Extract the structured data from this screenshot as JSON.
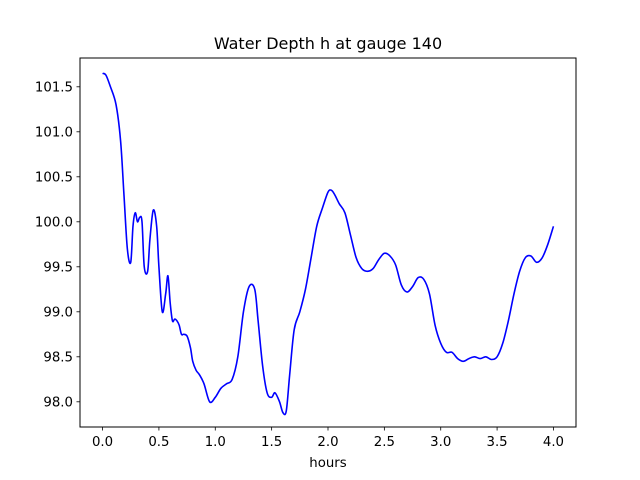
{
  "chart_data": {
    "type": "line",
    "title": "Water Depth h at gauge 140",
    "xlabel": "hours",
    "ylabel": "",
    "xlim": [
      -0.2,
      4.2
    ],
    "ylim": [
      97.72,
      101.82
    ],
    "xticks": [
      0.0,
      0.5,
      1.0,
      1.5,
      2.0,
      2.5,
      3.0,
      3.5,
      4.0
    ],
    "xtick_labels": [
      "0.0",
      "0.5",
      "1.0",
      "1.5",
      "2.0",
      "2.5",
      "3.0",
      "3.5",
      "4.0"
    ],
    "yticks": [
      98.0,
      98.5,
      99.0,
      99.5,
      100.0,
      100.5,
      101.0,
      101.5
    ],
    "ytick_labels": [
      "98.0",
      "98.5",
      "99.0",
      "99.5",
      "100.0",
      "100.5",
      "101.0",
      "101.5"
    ],
    "grid": false,
    "legend": "none",
    "series": [
      {
        "color": "#0000ff",
        "x": [
          0.0,
          0.03,
          0.07,
          0.12,
          0.16,
          0.19,
          0.22,
          0.25,
          0.27,
          0.29,
          0.31,
          0.33,
          0.35,
          0.37,
          0.4,
          0.42,
          0.45,
          0.48,
          0.5,
          0.53,
          0.56,
          0.58,
          0.6,
          0.62,
          0.64,
          0.66,
          0.68,
          0.7,
          0.72,
          0.75,
          0.78,
          0.8,
          0.83,
          0.86,
          0.9,
          0.95,
          1.0,
          1.05,
          1.1,
          1.15,
          1.2,
          1.25,
          1.3,
          1.35,
          1.38,
          1.42,
          1.46,
          1.5,
          1.53,
          1.57,
          1.6,
          1.63,
          1.66,
          1.7,
          1.75,
          1.8,
          1.85,
          1.9,
          1.95,
          2.0,
          2.03,
          2.06,
          2.1,
          2.15,
          2.2,
          2.25,
          2.3,
          2.35,
          2.4,
          2.45,
          2.5,
          2.55,
          2.6,
          2.65,
          2.7,
          2.75,
          2.8,
          2.85,
          2.9,
          2.95,
          3.0,
          3.05,
          3.1,
          3.15,
          3.2,
          3.25,
          3.3,
          3.35,
          3.4,
          3.45,
          3.5,
          3.55,
          3.6,
          3.65,
          3.7,
          3.75,
          3.8,
          3.85,
          3.9,
          3.95,
          4.0
        ],
        "y": [
          101.65,
          101.63,
          101.5,
          101.3,
          100.9,
          100.3,
          99.7,
          99.55,
          99.95,
          100.1,
          100.0,
          100.05,
          100.0,
          99.5,
          99.45,
          99.8,
          100.13,
          99.95,
          99.5,
          99.0,
          99.2,
          99.4,
          99.1,
          98.9,
          98.92,
          98.9,
          98.85,
          98.75,
          98.75,
          98.73,
          98.6,
          98.45,
          98.35,
          98.3,
          98.2,
          98.0,
          98.05,
          98.15,
          98.2,
          98.25,
          98.5,
          99.0,
          99.28,
          99.25,
          98.9,
          98.4,
          98.1,
          98.05,
          98.1,
          98.0,
          97.88,
          97.9,
          98.3,
          98.8,
          99.0,
          99.25,
          99.6,
          99.95,
          100.15,
          100.33,
          100.35,
          100.3,
          100.2,
          100.1,
          99.85,
          99.6,
          99.48,
          99.45,
          99.48,
          99.58,
          99.65,
          99.62,
          99.52,
          99.3,
          99.22,
          99.28,
          99.38,
          99.36,
          99.2,
          98.85,
          98.65,
          98.55,
          98.55,
          98.48,
          98.45,
          98.48,
          98.5,
          98.48,
          98.5,
          98.47,
          98.5,
          98.65,
          98.9,
          99.2,
          99.45,
          99.6,
          99.62,
          99.55,
          99.6,
          99.75,
          99.95
        ]
      }
    ]
  }
}
